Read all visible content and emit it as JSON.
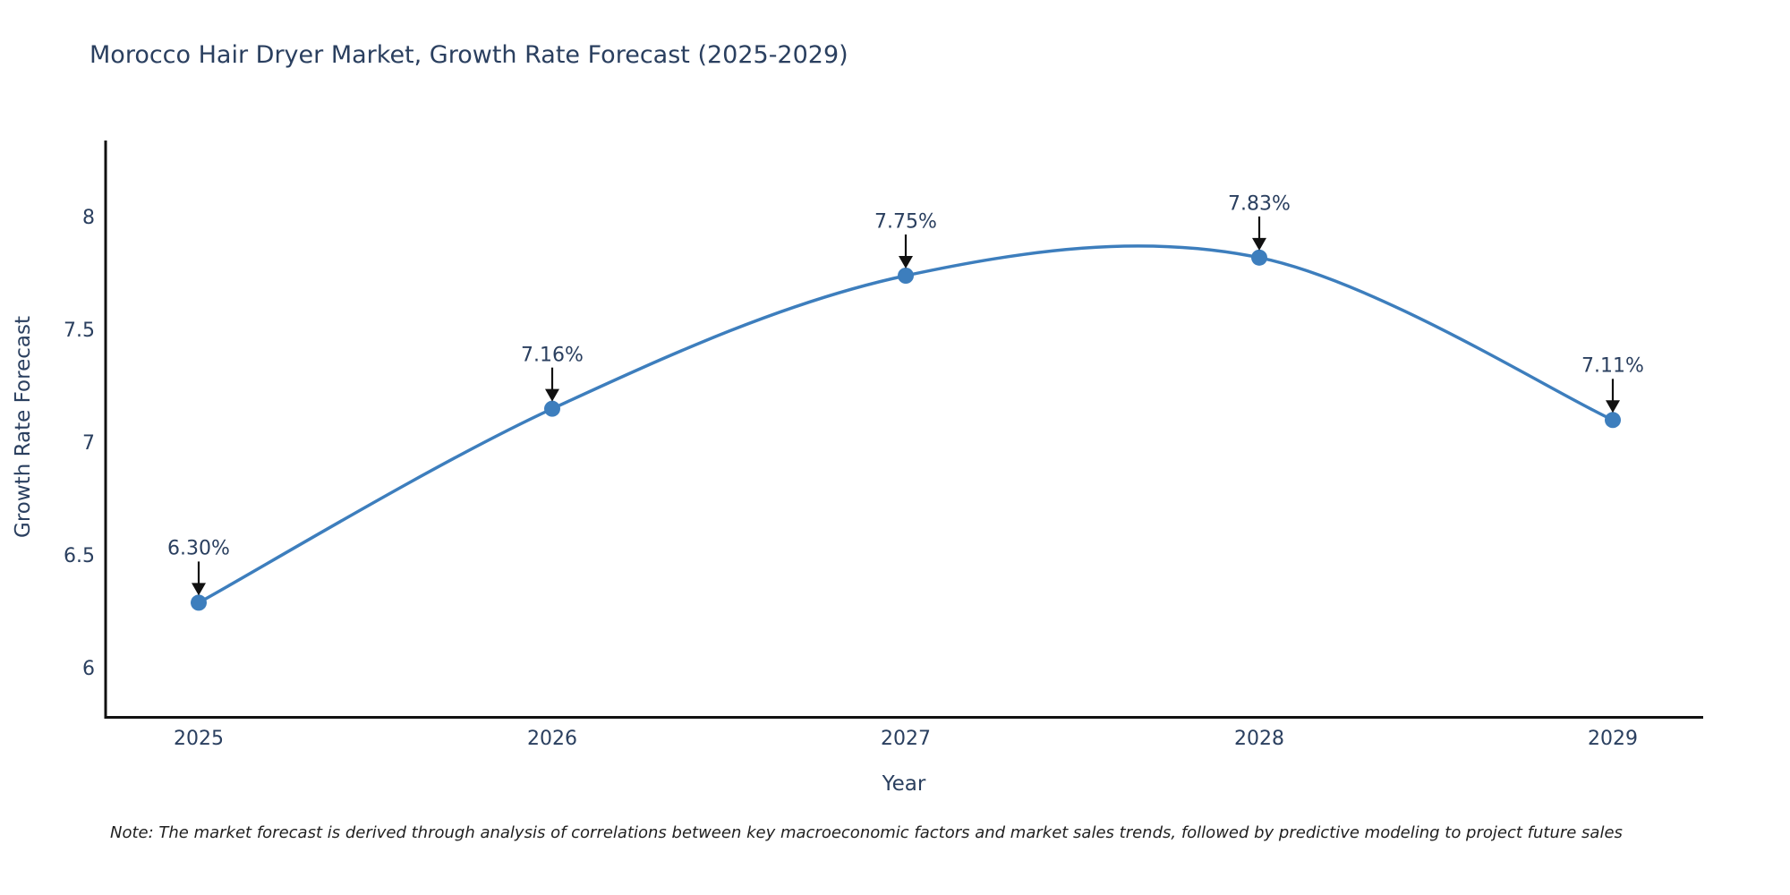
{
  "chart_data": {
    "type": "line",
    "line_shape": "spline",
    "title": "Morocco Hair Dryer Market, Growth Rate Forecast (2025-2029)",
    "xlabel": "Year",
    "ylabel": "Growth Rate Forecast",
    "x": [
      2025,
      2026,
      2027,
      2028,
      2029
    ],
    "values": [
      6.3,
      7.16,
      7.75,
      7.83,
      7.11
    ],
    "point_labels": [
      "6.30%",
      "7.16%",
      "7.75%",
      "7.83%",
      "7.11%"
    ],
    "x_tick_labels": [
      "2025",
      "2026",
      "2027",
      "2028",
      "2029"
    ],
    "y_tick_values": [
      6,
      6.5,
      7,
      7.5,
      8
    ],
    "y_tick_labels": [
      "6",
      "6.5",
      "7",
      "7.5",
      "8"
    ],
    "xlim": [
      2024.74,
      2029.26
    ],
    "ylim": [
      5.79,
      8.34
    ],
    "grid": false,
    "legend_position": "none",
    "annotation_style": "percent labels with black down-arrows above each marker",
    "line_color": "#3d7ebd",
    "marker_color": "#3d7ebd",
    "arrow_color": "#111111",
    "text_color": "#2a3f5f",
    "axis_color": "#111111",
    "background_color": "#ffffff"
  },
  "footer": {
    "note": "Note: The market forecast is derived through analysis of correlations between key macroeconomic factors and market sales trends, followed by predictive modeling to project future sales"
  }
}
